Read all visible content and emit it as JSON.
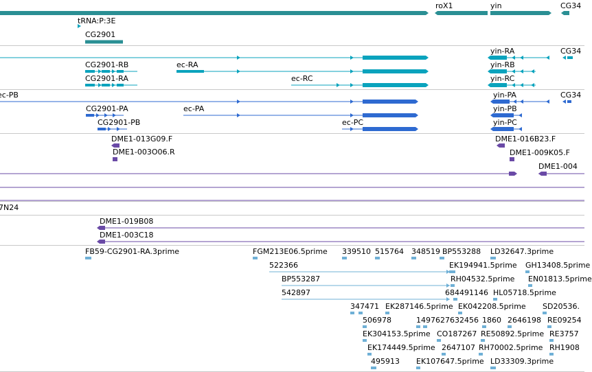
{
  "colors": {
    "gene": "#2a8f94",
    "transcript": "#0aa3bd",
    "protein": "#2e6ad1",
    "clone": "#6a4aa6",
    "est": "#6fb0d6",
    "separator": "#c8c8c8"
  },
  "tracks": {
    "genes": [
      "tRNA:P:3E",
      "CG2901",
      "roX1",
      "yin",
      "CG34"
    ],
    "transcripts": [
      "CG2901-RB",
      "CG2901-RA",
      "ec-RA",
      "ec-RC",
      "yin-RA",
      "yin-RB",
      "yin-RC",
      "CG34"
    ],
    "proteins": [
      "ec-PB",
      "CG2901-PA",
      "CG2901-PB",
      "ec-PA",
      "ec-PC",
      "yin-PA",
      "yin-PB",
      "yin-PC",
      "CG34"
    ],
    "clones": [
      "DME1-013G09.F",
      "DME1-003O06.R",
      "DME1-016B23.F",
      "DME1-009K05.F",
      "DME1-004"
    ],
    "long_clones": [
      "7N24",
      "DME1-019B08",
      "DME1-003C18"
    ],
    "ests": [
      "FB59-CG2901-RA.3prime",
      "FGM213E06.5prime",
      "339510",
      "515764",
      "348519",
      "BP553288",
      "LD32647.3prime",
      "522366",
      "EK194941.5prime",
      "GH13408.5prime",
      "BP553287",
      "RH04532.5prime",
      "EN01813.5prime",
      "542897",
      "684491146",
      "HL05718.5prime",
      "347471",
      "EK287146.5prime",
      "EK042208.5prime",
      "SD20536.",
      "506978",
      "1497627632456",
      "1860",
      "2646198",
      "RE09254",
      "EK304153.5prime",
      "CO187267",
      "RE50892.5prime",
      "RE3757",
      "EK174449.5prime",
      "2647107",
      "RH70002.5prime",
      "RH1908",
      "495913",
      "EK107647.5prime",
      "LD33309.3prime"
    ]
  }
}
